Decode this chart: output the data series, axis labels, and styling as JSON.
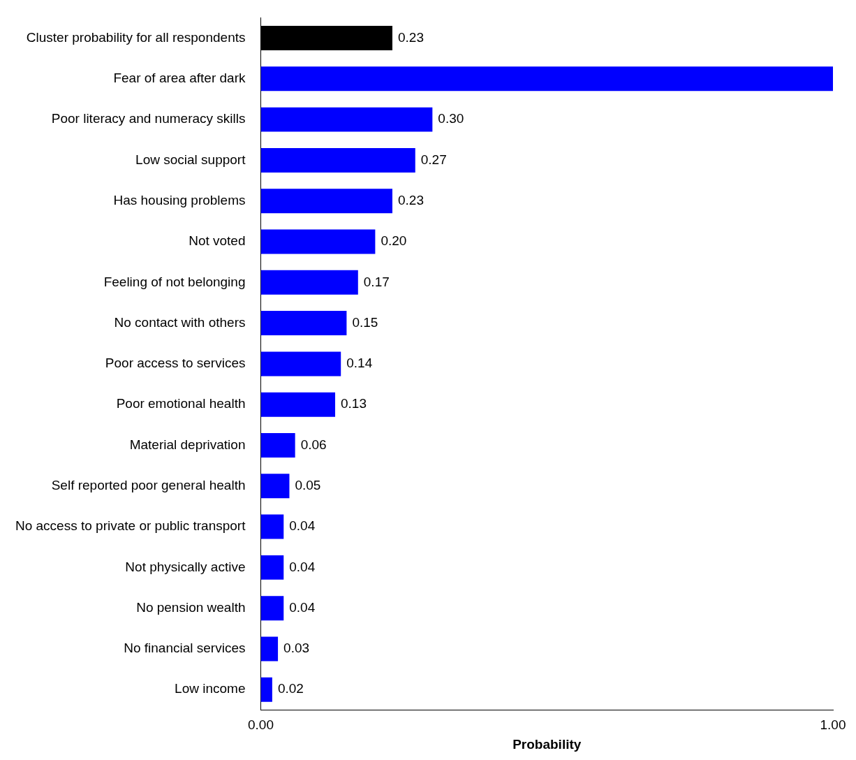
{
  "chart_data": {
    "type": "bar",
    "orientation": "horizontal",
    "xlabel": "Probability",
    "categories": [
      "Cluster probability for all respondents",
      "Fear of area after dark",
      "Poor literacy and numeracy skills",
      "Low social support",
      "Has housing problems",
      "Not voted",
      "Feeling of not belonging",
      "No contact with others",
      "Poor access to services",
      "Poor emotional health",
      "Material deprivation",
      "Self reported poor general health",
      "No access to private or public transport",
      "Not physically active",
      "No pension wealth",
      "No financial services",
      "Low income"
    ],
    "values": [
      0.23,
      1.0,
      0.3,
      0.27,
      0.23,
      0.2,
      0.17,
      0.15,
      0.14,
      0.13,
      0.06,
      0.05,
      0.04,
      0.04,
      0.04,
      0.03,
      0.02
    ],
    "value_labels": [
      "0.23",
      null,
      "0.30",
      "0.27",
      "0.23",
      "0.20",
      "0.17",
      "0.15",
      "0.14",
      "0.13",
      "0.06",
      "0.05",
      "0.04",
      "0.04",
      "0.04",
      "0.03",
      "0.02"
    ],
    "colors": [
      "#000000",
      "#0000ff",
      "#0000ff",
      "#0000ff",
      "#0000ff",
      "#0000ff",
      "#0000ff",
      "#0000ff",
      "#0000ff",
      "#0000ff",
      "#0000ff",
      "#0000ff",
      "#0000ff",
      "#0000ff",
      "#0000ff",
      "#0000ff",
      "#0000ff"
    ],
    "xlim": [
      0,
      1
    ],
    "xticks": [
      {
        "value": 0,
        "label": "0.00"
      },
      {
        "value": 1,
        "label": "1.00"
      }
    ],
    "grid": false,
    "legend": false
  }
}
